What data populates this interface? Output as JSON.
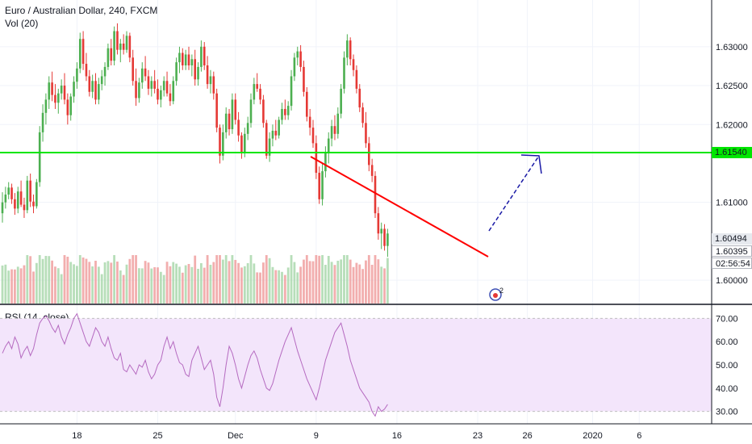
{
  "header": {
    "title": "Euro / Australian Dollar, 240, FXCM",
    "vol_label": "Vol (20)"
  },
  "rsi": {
    "label": "RSI (14, close)"
  },
  "colors": {
    "up": "#4caf50",
    "down": "#e53935",
    "hline": "#00e600",
    "trend": "#ff0000",
    "arrow": "#1a1aa6",
    "rsi_band": "#f3e5fb",
    "rsi_line": "#b56ac0"
  },
  "price_tags": {
    "hline": "1.61540",
    "current": "1.60494",
    "close": "1.60395",
    "timer": "02:56:54"
  },
  "chart_data": [
    {
      "type": "candlestick",
      "title": "Euro / Australian Dollar, 240, FXCM",
      "y_ticks": [
        "1.63000",
        "1.62500",
        "1.62000",
        "1.61000",
        "1.60000"
      ],
      "y_tick_values": [
        1.63,
        1.625,
        1.62,
        1.61,
        1.6
      ],
      "ylim": [
        1.597,
        1.636
      ],
      "x_ticks": [
        "18",
        "25",
        "Dec",
        "9",
        "16",
        "23",
        "26",
        "2020",
        "6"
      ],
      "x_tick_index": [
        24,
        50,
        75,
        101,
        127,
        153,
        169,
        190,
        205
      ],
      "horizontal_line": 1.6154,
      "candles": [
        [
          1.6086,
          1.6113,
          1.6074,
          1.61
        ],
        [
          1.61,
          1.612,
          1.6092,
          1.611
        ],
        [
          1.611,
          1.6126,
          1.6104,
          1.6119
        ],
        [
          1.6119,
          1.6124,
          1.6098,
          1.6104
        ],
        [
          1.6104,
          1.6112,
          1.6084,
          1.6092
        ],
        [
          1.6092,
          1.612,
          1.6086,
          1.6114
        ],
        [
          1.6114,
          1.6128,
          1.6094,
          1.6097
        ],
        [
          1.6097,
          1.6106,
          1.608,
          1.609
        ],
        [
          1.609,
          1.6134,
          1.6086,
          1.6128
        ],
        [
          1.6128,
          1.6137,
          1.6094,
          1.6101
        ],
        [
          1.6101,
          1.611,
          1.6086,
          1.6095
        ],
        [
          1.6095,
          1.613,
          1.6092,
          1.6126
        ],
        [
          1.6126,
          1.6198,
          1.612,
          1.619
        ],
        [
          1.619,
          1.6226,
          1.6178,
          1.6215
        ],
        [
          1.6215,
          1.624,
          1.62,
          1.6232
        ],
        [
          1.6232,
          1.6262,
          1.622,
          1.6254
        ],
        [
          1.6254,
          1.6268,
          1.623,
          1.6238
        ],
        [
          1.6238,
          1.6252,
          1.622,
          1.6228
        ],
        [
          1.6228,
          1.6246,
          1.6214,
          1.624
        ],
        [
          1.624,
          1.6258,
          1.6232,
          1.625
        ],
        [
          1.625,
          1.6266,
          1.6226,
          1.6232
        ],
        [
          1.6232,
          1.624,
          1.62,
          1.6212
        ],
        [
          1.6212,
          1.624,
          1.6205,
          1.6236
        ],
        [
          1.6236,
          1.6262,
          1.6228,
          1.6255
        ],
        [
          1.6255,
          1.628,
          1.6246,
          1.6272
        ],
        [
          1.6272,
          1.6318,
          1.6266,
          1.631
        ],
        [
          1.631,
          1.632,
          1.627,
          1.6278
        ],
        [
          1.6278,
          1.6292,
          1.6256,
          1.6262
        ],
        [
          1.6262,
          1.627,
          1.6236,
          1.6242
        ],
        [
          1.6242,
          1.6264,
          1.6234,
          1.6256
        ],
        [
          1.6256,
          1.6266,
          1.6226,
          1.6232
        ],
        [
          1.6232,
          1.626,
          1.6226,
          1.6252
        ],
        [
          1.6252,
          1.627,
          1.6244,
          1.6262
        ],
        [
          1.6262,
          1.628,
          1.625,
          1.6274
        ],
        [
          1.6274,
          1.6304,
          1.627,
          1.6298
        ],
        [
          1.6298,
          1.631,
          1.6276,
          1.6282
        ],
        [
          1.6282,
          1.6326,
          1.6276,
          1.632
        ],
        [
          1.632,
          1.633,
          1.629,
          1.6296
        ],
        [
          1.6296,
          1.631,
          1.628,
          1.6304
        ],
        [
          1.6304,
          1.6316,
          1.629,
          1.6296
        ],
        [
          1.6296,
          1.632,
          1.6292,
          1.6314
        ],
        [
          1.6314,
          1.6318,
          1.628,
          1.6286
        ],
        [
          1.6286,
          1.6296,
          1.625,
          1.6256
        ],
        [
          1.6256,
          1.6272,
          1.6224,
          1.6234
        ],
        [
          1.6234,
          1.626,
          1.6228,
          1.6254
        ],
        [
          1.6254,
          1.628,
          1.6246,
          1.6272
        ],
        [
          1.6272,
          1.6288,
          1.6256,
          1.6262
        ],
        [
          1.6262,
          1.627,
          1.6238,
          1.6246
        ],
        [
          1.6246,
          1.6262,
          1.6236,
          1.6256
        ],
        [
          1.6256,
          1.627,
          1.624,
          1.6246
        ],
        [
          1.6246,
          1.6258,
          1.6226,
          1.6232
        ],
        [
          1.6232,
          1.625,
          1.6222,
          1.6244
        ],
        [
          1.6244,
          1.6262,
          1.6236,
          1.6256
        ],
        [
          1.6256,
          1.6268,
          1.6236,
          1.624
        ],
        [
          1.624,
          1.6252,
          1.6224,
          1.623
        ],
        [
          1.623,
          1.6262,
          1.6226,
          1.6256
        ],
        [
          1.6256,
          1.6286,
          1.625,
          1.628
        ],
        [
          1.628,
          1.63,
          1.6266,
          1.6292
        ],
        [
          1.6292,
          1.6298,
          1.627,
          1.6276
        ],
        [
          1.6276,
          1.6296,
          1.627,
          1.629
        ],
        [
          1.629,
          1.63,
          1.627,
          1.6276
        ],
        [
          1.6276,
          1.629,
          1.6262,
          1.6284
        ],
        [
          1.6284,
          1.6296,
          1.625,
          1.6258
        ],
        [
          1.6258,
          1.628,
          1.625,
          1.6274
        ],
        [
          1.6274,
          1.6308,
          1.6268,
          1.63
        ],
        [
          1.63,
          1.6306,
          1.627,
          1.6276
        ],
        [
          1.6276,
          1.6288,
          1.6246,
          1.6252
        ],
        [
          1.6252,
          1.627,
          1.624,
          1.6262
        ],
        [
          1.6262,
          1.6268,
          1.6232,
          1.624
        ],
        [
          1.624,
          1.6246,
          1.619,
          1.6196
        ],
        [
          1.6196,
          1.62,
          1.615,
          1.616
        ],
        [
          1.616,
          1.62,
          1.6154,
          1.619
        ],
        [
          1.619,
          1.6222,
          1.6182,
          1.6214
        ],
        [
          1.6214,
          1.622,
          1.6186,
          1.6194
        ],
        [
          1.6194,
          1.624,
          1.6188,
          1.6232
        ],
        [
          1.6232,
          1.624,
          1.62,
          1.6206
        ],
        [
          1.6206,
          1.6216,
          1.6178,
          1.6186
        ],
        [
          1.6186,
          1.619,
          1.6156,
          1.6164
        ],
        [
          1.6164,
          1.6196,
          1.6158,
          1.6188
        ],
        [
          1.6188,
          1.621,
          1.618,
          1.6202
        ],
        [
          1.6202,
          1.624,
          1.6196,
          1.6232
        ],
        [
          1.6232,
          1.626,
          1.6226,
          1.6252
        ],
        [
          1.6252,
          1.6266,
          1.6242,
          1.6246
        ],
        [
          1.6246,
          1.6252,
          1.6226,
          1.6232
        ],
        [
          1.6232,
          1.6238,
          1.6196,
          1.6202
        ],
        [
          1.6202,
          1.6206,
          1.6156,
          1.616
        ],
        [
          1.616,
          1.619,
          1.6152,
          1.6182
        ],
        [
          1.6182,
          1.62,
          1.6172,
          1.6192
        ],
        [
          1.6192,
          1.6206,
          1.618,
          1.6186
        ],
        [
          1.6186,
          1.621,
          1.6182,
          1.6206
        ],
        [
          1.6206,
          1.6228,
          1.62,
          1.622
        ],
        [
          1.622,
          1.6232,
          1.6206,
          1.6212
        ],
        [
          1.6212,
          1.623,
          1.6206,
          1.6224
        ],
        [
          1.6224,
          1.627,
          1.6218,
          1.6262
        ],
        [
          1.6262,
          1.6292,
          1.6256,
          1.6286
        ],
        [
          1.6286,
          1.63,
          1.6276,
          1.6294
        ],
        [
          1.6294,
          1.6302,
          1.6268,
          1.6274
        ],
        [
          1.6274,
          1.6282,
          1.6236,
          1.6242
        ],
        [
          1.6242,
          1.6248,
          1.6204,
          1.621
        ],
        [
          1.621,
          1.622,
          1.6186,
          1.6196
        ],
        [
          1.6196,
          1.6206,
          1.617,
          1.6176
        ],
        [
          1.6176,
          1.6186,
          1.613,
          1.6138
        ],
        [
          1.6138,
          1.6146,
          1.6098,
          1.6104
        ],
        [
          1.6104,
          1.615,
          1.6096,
          1.614
        ],
        [
          1.614,
          1.6172,
          1.6132,
          1.6164
        ],
        [
          1.6164,
          1.619,
          1.615,
          1.6182
        ],
        [
          1.6182,
          1.6206,
          1.6172,
          1.6198
        ],
        [
          1.6198,
          1.6212,
          1.618,
          1.6188
        ],
        [
          1.6188,
          1.6222,
          1.6182,
          1.6214
        ],
        [
          1.6214,
          1.6252,
          1.6208,
          1.6246
        ],
        [
          1.6246,
          1.6294,
          1.624,
          1.6286
        ],
        [
          1.6286,
          1.6316,
          1.6276,
          1.6308
        ],
        [
          1.6308,
          1.6312,
          1.6276,
          1.6284
        ],
        [
          1.6284,
          1.629,
          1.6262,
          1.627
        ],
        [
          1.627,
          1.6276,
          1.624,
          1.6246
        ],
        [
          1.6246,
          1.6252,
          1.6216,
          1.6222
        ],
        [
          1.6222,
          1.6228,
          1.6196,
          1.6202
        ],
        [
          1.6202,
          1.6216,
          1.617,
          1.6176
        ],
        [
          1.6176,
          1.6184,
          1.614,
          1.6148
        ],
        [
          1.6148,
          1.6156,
          1.6126,
          1.6134
        ],
        [
          1.6134,
          1.614,
          1.608,
          1.6086
        ],
        [
          1.6086,
          1.6094,
          1.6052,
          1.606
        ],
        [
          1.606,
          1.6074,
          1.604,
          1.6066
        ],
        [
          1.6066,
          1.6072,
          1.6038,
          1.6044
        ],
        [
          1.6044,
          1.6066,
          1.603,
          1.606
        ]
      ]
    },
    {
      "type": "line",
      "title": "RSI (14, close)",
      "y_ticks": [
        "70.00",
        "60.00",
        "50.00",
        "40.00",
        "30.00"
      ],
      "y_tick_values": [
        70,
        60,
        50,
        40,
        30
      ],
      "ylim": [
        25,
        75
      ],
      "band": [
        30,
        70
      ],
      "values": [
        55,
        58,
        60,
        57,
        62,
        59,
        53,
        56,
        58,
        54,
        57,
        63,
        68,
        70,
        71,
        69,
        66,
        64,
        67,
        62,
        59,
        63,
        66,
        70,
        72,
        68,
        64,
        60,
        58,
        62,
        66,
        64,
        60,
        58,
        62,
        57,
        53,
        52,
        55,
        48,
        47,
        50,
        48,
        46,
        50,
        49,
        52,
        47,
        44,
        46,
        50,
        52,
        58,
        62,
        57,
        60,
        55,
        51,
        50,
        46,
        45,
        52,
        55,
        58,
        53,
        48,
        50,
        52,
        46,
        36,
        32,
        40,
        50,
        58,
        55,
        50,
        44,
        40,
        45,
        50,
        54,
        56,
        53,
        48,
        44,
        40,
        39,
        42,
        47,
        52,
        56,
        60,
        63,
        66,
        61,
        56,
        52,
        48,
        44,
        41,
        38,
        35,
        40,
        46,
        52,
        56,
        60,
        64,
        66,
        68,
        63,
        58,
        52,
        48,
        44,
        40,
        38,
        36,
        34,
        30,
        28,
        32,
        30,
        31,
        33
      ]
    }
  ]
}
